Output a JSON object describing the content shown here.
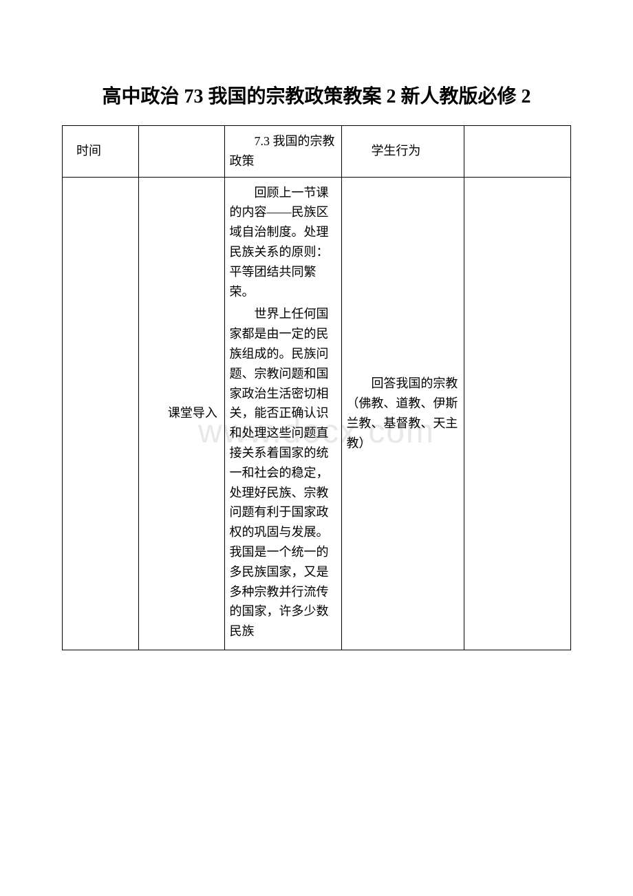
{
  "document": {
    "title": "高中政治 73 我国的宗教政策教案 2 新人教版必修 2",
    "watermark": "www.docx.com",
    "table": {
      "header_row": {
        "col1": "时间",
        "col2": "",
        "col3": "7.3 我国的宗教政策",
        "col4": "学生行为",
        "col5": ""
      },
      "body_row": {
        "col1": "",
        "col2": "课堂导入",
        "col3_para1": "回顾上一节课的内容——民族区域自治制度。处理民族关系的原则：平等团结共同繁荣。",
        "col3_para2": "世界上任何国家都是由一定的民族组成的。民族问题、宗教问题和国家政治生活密切相关，能否正确认识和处理这些问题直接关系着国家的统一和社会的稳定，处理好民族、宗教问题有利于国家政权的巩固与发展。我国是一个统一的多民族国家，又是多种宗教并行流传的国家，许多少数民族",
        "col4": "回答我国的宗教（佛教、道教、伊斯兰教、基督教、天主教）",
        "col5": ""
      }
    }
  }
}
